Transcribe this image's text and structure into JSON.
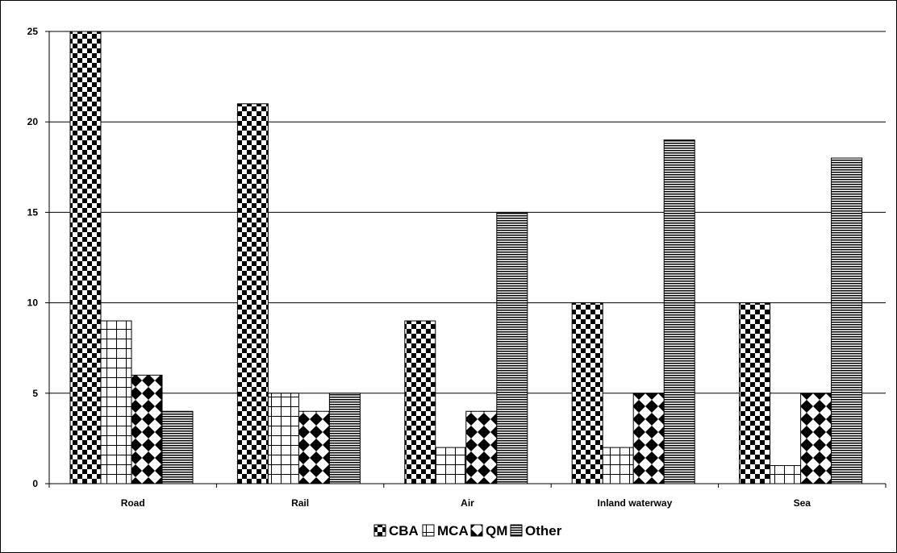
{
  "chart_data": {
    "type": "bar",
    "title": "",
    "xlabel": "",
    "ylabel": "",
    "categories": [
      "Road",
      "Rail",
      "Air",
      "Inland waterway",
      "Sea"
    ],
    "series": [
      {
        "name": "CBA",
        "values": [
          25,
          21,
          9,
          10,
          10
        ],
        "pattern": "checker"
      },
      {
        "name": "MCA",
        "values": [
          9,
          5,
          2,
          2,
          1
        ],
        "pattern": "grid"
      },
      {
        "name": "QM",
        "values": [
          6,
          4,
          4,
          5,
          5
        ],
        "pattern": "diamond"
      },
      {
        "name": "Other",
        "values": [
          4,
          5,
          15,
          19,
          18
        ],
        "pattern": "hlines"
      }
    ],
    "ylim": [
      0,
      25
    ],
    "yticks": [
      "0",
      "5",
      "10",
      "15",
      "20",
      "25"
    ],
    "grid": true,
    "legend_position": "bottom",
    "colors": {
      "ink": "#000000",
      "paper": "#ffffff",
      "gridline": "#000000"
    }
  }
}
